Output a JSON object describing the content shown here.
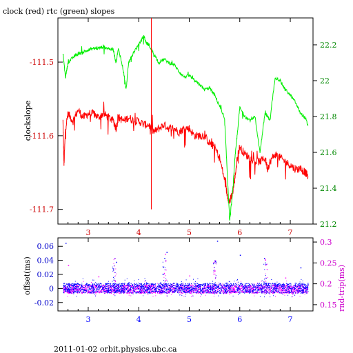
{
  "title": "clock (red) rtc (green) slopes",
  "footer": "2011-01-02  orbit.physics.ubc.ca",
  "colors": {
    "clock": "#ff0000",
    "rtc": "#00ee00",
    "offset": "#0000ff",
    "rtt": "#ff00ff",
    "frame": "#000000",
    "left_ticks_top": "#cc0000",
    "right_ticks_top": "#008800",
    "xticks": "#cc0000",
    "left_ticks_bottom": "#0000cc",
    "right_ticks_bottom": "#cc00cc"
  },
  "chart_data": [
    {
      "type": "line",
      "ylabel": "clockslope",
      "xlim": [
        2.4,
        7.45
      ],
      "ylim": [
        -111.72,
        -111.44
      ],
      "y2lim": [
        21.2,
        22.35
      ],
      "xticks": [
        "3",
        "4",
        "5",
        "6",
        "7"
      ],
      "xtick_values": [
        3,
        4,
        5,
        6,
        7
      ],
      "yticks": [
        "-111.5",
        "-111.6",
        "-111.7"
      ],
      "ytick_values": [
        -111.5,
        -111.6,
        -111.7
      ],
      "y2ticks": [
        "22.2",
        "22",
        "21.8",
        "21.6",
        "21.4",
        "21.2"
      ],
      "y2tick_values": [
        22.2,
        22.0,
        21.8,
        21.6,
        21.4,
        21.2
      ],
      "series": [
        {
          "name": "clock (red)",
          "axis": "left",
          "x": [
            2.5,
            2.52,
            2.55,
            2.6,
            2.7,
            2.8,
            2.9,
            3.0,
            3.1,
            3.2,
            3.3,
            3.4,
            3.5,
            3.55,
            3.6,
            3.7,
            3.8,
            3.9,
            4.0,
            4.1,
            4.2,
            4.3,
            4.4,
            4.5,
            4.6,
            4.7,
            4.8,
            4.9,
            5.0,
            5.1,
            5.2,
            5.3,
            5.4,
            5.5,
            5.6,
            5.7,
            5.75,
            5.8,
            5.85,
            5.9,
            5.95,
            6.0,
            6.1,
            6.2,
            6.3,
            6.4,
            6.5,
            6.55,
            6.6,
            6.7,
            6.8,
            6.9,
            7.0,
            7.1,
            7.2,
            7.3,
            7.35
          ],
          "y": [
            -111.58,
            -111.64,
            -111.59,
            -111.57,
            -111.58,
            -111.565,
            -111.575,
            -111.57,
            -111.57,
            -111.575,
            -111.57,
            -111.575,
            -111.58,
            -111.59,
            -111.575,
            -111.58,
            -111.575,
            -111.58,
            -111.58,
            -111.585,
            -111.585,
            -111.595,
            -111.59,
            -111.585,
            -111.59,
            -111.59,
            -111.595,
            -111.59,
            -111.59,
            -111.6,
            -111.6,
            -111.6,
            -111.61,
            -111.615,
            -111.63,
            -111.66,
            -111.68,
            -111.69,
            -111.68,
            -111.66,
            -111.63,
            -111.615,
            -111.625,
            -111.63,
            -111.635,
            -111.635,
            -111.63,
            -111.645,
            -111.635,
            -111.625,
            -111.63,
            -111.635,
            -111.64,
            -111.645,
            -111.645,
            -111.65,
            -111.655
          ]
        },
        {
          "name": "rtc (green)",
          "axis": "right",
          "x": [
            2.5,
            2.55,
            2.6,
            2.7,
            2.8,
            2.9,
            3.0,
            3.1,
            3.2,
            3.3,
            3.4,
            3.5,
            3.55,
            3.6,
            3.7,
            3.75,
            3.8,
            3.9,
            4.0,
            4.1,
            4.15,
            4.2,
            4.3,
            4.4,
            4.5,
            4.6,
            4.7,
            4.8,
            4.9,
            5.0,
            5.1,
            5.2,
            5.3,
            5.4,
            5.5,
            5.6,
            5.7,
            5.75,
            5.8,
            5.85,
            5.9,
            5.95,
            6.0,
            6.1,
            6.2,
            6.3,
            6.4,
            6.5,
            6.55,
            6.6,
            6.7,
            6.8,
            6.9,
            7.0,
            7.1,
            7.2,
            7.3,
            7.35
          ],
          "y": [
            22.15,
            22.02,
            22.1,
            22.13,
            22.15,
            22.16,
            22.17,
            22.18,
            22.18,
            22.19,
            22.18,
            22.17,
            22.1,
            22.18,
            22.05,
            21.95,
            22.1,
            22.16,
            22.2,
            22.25,
            22.21,
            22.2,
            22.15,
            22.1,
            22.12,
            22.1,
            22.09,
            22.05,
            22.02,
            22.03,
            22.0,
            21.98,
            21.95,
            21.96,
            21.92,
            21.86,
            21.78,
            21.5,
            21.22,
            21.35,
            21.55,
            21.7,
            21.85,
            21.8,
            21.78,
            21.8,
            21.6,
            21.82,
            21.8,
            21.78,
            22.02,
            22.0,
            21.95,
            21.92,
            21.88,
            21.82,
            21.79,
            21.75
          ]
        }
      ]
    },
    {
      "type": "scatter",
      "ylabel": "offset(ms)",
      "y2label": "rnd-trip(ms)",
      "xlim": [
        2.4,
        7.45
      ],
      "ylim": [
        -0.032,
        0.072
      ],
      "y2lim": [
        0.135,
        0.31
      ],
      "xticks": [
        "3",
        "4",
        "5",
        "6",
        "7"
      ],
      "xtick_values": [
        3,
        4,
        5,
        6,
        7
      ],
      "yticks": [
        "0.06",
        "0.04",
        "0.02",
        "0",
        "-0.02"
      ],
      "ytick_values": [
        0.06,
        0.04,
        0.02,
        0,
        -0.02
      ],
      "y2ticks": [
        "0.3",
        "0.25",
        "0.2",
        "0.15"
      ],
      "y2tick_values": [
        0.3,
        0.25,
        0.2,
        0.15
      ],
      "series": [
        {
          "name": "offset",
          "axis": "left",
          "band": [
            -0.006,
            0.008
          ],
          "spikes_x": [
            3.5,
            4.5,
            5.5,
            6.5
          ],
          "outliers": [
            [
              2.55,
              0.065
            ],
            [
              4.55,
              0.052
            ],
            [
              5.55,
              0.068
            ],
            [
              6.0,
              0.048
            ],
            [
              3.55,
              0.038
            ],
            [
              7.2,
              0.03
            ]
          ]
        },
        {
          "name": "rnd-trip",
          "axis": "right",
          "band": [
            0.178,
            0.198
          ],
          "spikes_x": [
            3.52,
            4.52,
            5.5,
            6.52
          ],
          "outliers": [
            [
              2.6,
              0.245
            ],
            [
              3.52,
              0.262
            ],
            [
              4.52,
              0.272
            ],
            [
              5.5,
              0.232
            ],
            [
              6.5,
              0.258
            ],
            [
              3.2,
              0.218
            ],
            [
              5.0,
              0.22
            ],
            [
              6.9,
              0.215
            ]
          ]
        }
      ]
    }
  ]
}
